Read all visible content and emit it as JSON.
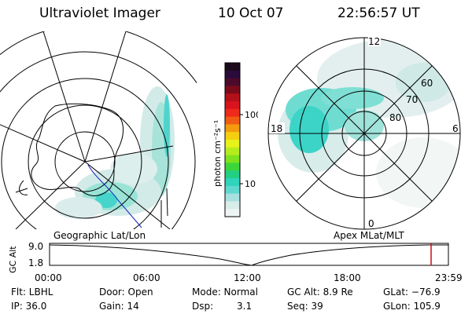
{
  "header": {
    "title": "Ultraviolet Imager",
    "date": "10 Oct 07",
    "time": "22:56:57 UT"
  },
  "colorbar": {
    "label": "photon cm⁻²s⁻¹",
    "ticks": [
      "100",
      "10"
    ],
    "colors": [
      "#1a0a1a",
      "#2a0b3c",
      "#4b0a2a",
      "#7a0b1a",
      "#b4101a",
      "#d8131d",
      "#ee2a1a",
      "#f05c12",
      "#f39c0e",
      "#f4cf10",
      "#e6f21a",
      "#b6ec1e",
      "#7fe21f",
      "#3dd63a",
      "#23cf82",
      "#2fd4bb",
      "#5fd8d0",
      "#a7e0df",
      "#d8ecea",
      "#eef4f3"
    ]
  },
  "geo_map": {
    "title": "Geographic Lat/Lon"
  },
  "apex_map": {
    "title": "Apex MLat/MLT",
    "mlt_labels": [
      "12",
      "18",
      "6",
      "0"
    ],
    "lat_labels": [
      "60",
      "70",
      "80"
    ]
  },
  "timeline": {
    "ylabel": "GC Alt",
    "ytick_top": "9.0",
    "ytick_bottom": "1.8",
    "xticks": [
      "00:00",
      "06:00",
      "12:00",
      "18:00",
      "23:59"
    ],
    "marker_color": "#c81010"
  },
  "info": {
    "filter": "Flt: LBHL",
    "ip": "IP: 36.0",
    "door": "Door: Open",
    "gain": "Gain: 14",
    "mode": "Mode: Normal",
    "dsp_label": "Dsp:",
    "dsp_value": "3.1",
    "gcalt": "GC Alt: 8.9 Re",
    "seq": "Seq: 39",
    "glat": "GLat: −76.9",
    "glon": "GLon: 105.9"
  }
}
